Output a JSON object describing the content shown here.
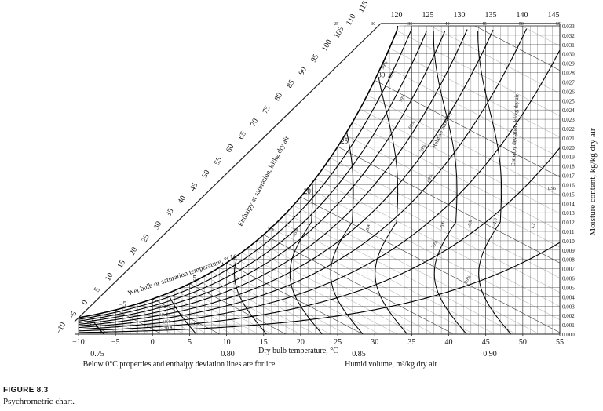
{
  "chart_data": {
    "type": "psychrometric",
    "xlabel": "Dry bulb temperature, °C",
    "ylabel": "Moisture content, kg/kg dry air",
    "xlim": [
      -10,
      55
    ],
    "ylim": [
      0.0,
      0.033
    ],
    "x_ticks": [
      "−10",
      "−5",
      "0",
      "5",
      "10",
      "15",
      "20",
      "25",
      "30",
      "35",
      "40",
      "45",
      "50",
      "55"
    ],
    "y_ticks": [
      "0.000",
      "0.001",
      "0.002",
      "0.003",
      "0.004",
      "0.005",
      "0.006",
      "0.007",
      "0.008",
      "0.009",
      "0.010",
      "0.011",
      "0.012",
      "0.013",
      "0.014",
      "0.015",
      "0.016",
      "0.017",
      "0.018",
      "0.019",
      "0.020",
      "0.021",
      "0.022",
      "0.023",
      "0.024",
      "0.025",
      "0.026",
      "0.027",
      "0.028",
      "0.029",
      "0.030",
      "0.031",
      "0.032",
      "0.033"
    ],
    "grid": true,
    "relative_humidity": {
      "label": "Relative humidity",
      "values_percent": [
        10,
        20,
        30,
        40,
        50,
        60,
        70,
        80,
        90,
        100
      ],
      "visible_labels": [
        "10%",
        "30%",
        "40%",
        "50%",
        "60%",
        "70%",
        "80%",
        "90%"
      ]
    },
    "wet_bulb": {
      "label": "Wet bulb or saturation temperature, °C",
      "labels": [
        "−5",
        "5",
        "10",
        "15",
        "20",
        "25",
        "30"
      ]
    },
    "enthalpy_at_saturation": {
      "label": "Enthalpy at saturation, kJ/kg dry air",
      "ticks_diagonal": [
        "−10",
        "−5",
        "0",
        "5",
        "10",
        "15",
        "20",
        "25",
        "30",
        "35",
        "40",
        "45",
        "50",
        "55",
        "60",
        "65",
        "70",
        "75",
        "80",
        "85",
        "90",
        "95",
        "100",
        "105",
        "110",
        "115"
      ],
      "ticks_top": [
        "120",
        "125",
        "130",
        "135",
        "140",
        "145"
      ],
      "small_tick_labels": [
        "25",
        "30",
        "35",
        "40",
        "45",
        "50",
        "55"
      ]
    },
    "enthalpy_deviation": {
      "label": "Enthalpy deviation, kJ/kg dry air",
      "labels": [
        "+0.2",
        "+0.4",
        "+0.6",
        "+0.8",
        "+1.0",
        "−0.2",
        "−0.4",
        "−0.6",
        "−0.8",
        "−1.0",
        "−1.2"
      ]
    },
    "humid_volume": {
      "label": "Humid volume, m³/kg dry air",
      "values": [
        0.75,
        0.8,
        0.85,
        0.9,
        0.95
      ],
      "labels": [
        "0.75",
        "0.80",
        "0.85",
        "0.90",
        "0.95"
      ]
    },
    "footnote": "Below 0°C properties and enthalpy deviation lines are for ice"
  },
  "figure": {
    "label": "FIGURE 8.3",
    "caption": "Psychrometric chart."
  }
}
